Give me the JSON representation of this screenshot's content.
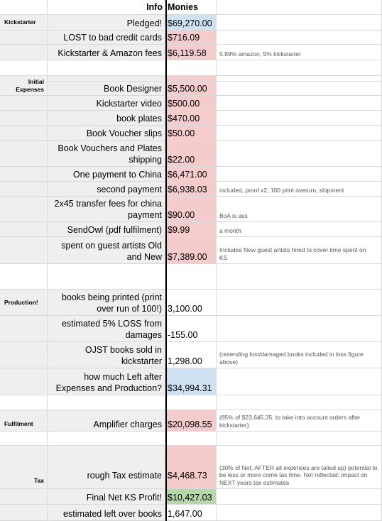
{
  "header": {
    "info": "Info",
    "monies": "Monies"
  },
  "sections": {
    "kickstarter": "Kickstarter",
    "initial_expenses": "Initial Expenses",
    "production": "Production!",
    "fulfilment": "Fulfilment",
    "tax": "Tax"
  },
  "rows": {
    "pledged": {
      "label": "Pledged!",
      "value": "$69,270.00"
    },
    "lost_cards": {
      "label": "LOST to bad credit cards",
      "value": "$716.09"
    },
    "fees": {
      "label": "Kickstarter & Amazon fees",
      "value": "$6,119.58",
      "note": "5.89% amazon, 5% kickstarter"
    },
    "book_designer": {
      "label": "Book Designer",
      "value": "$5,500.00"
    },
    "ks_video": {
      "label": "Kickstarter video",
      "value": "$500.00"
    },
    "book_plates": {
      "label": "book plates",
      "value": "$470.00"
    },
    "voucher_slips": {
      "label": "Book Voucher slips",
      "value": "$50.00"
    },
    "vouchers_ship": {
      "label": "Book Vouchers and Plates shipping",
      "value": "$22.00"
    },
    "china_one": {
      "label": "One payment to China",
      "value": "$6,471.00"
    },
    "china_two": {
      "label": "second payment",
      "value": "$6,938.03",
      "note": "included, proof x2, 100 print overurn, shipment"
    },
    "transfer_fees": {
      "label": "2x45 transfer fees for china payment",
      "value": "$90.00",
      "note": "BoA is ass"
    },
    "sendowl": {
      "label": "SendOwl (pdf fulfilment)",
      "value": "$9.99",
      "note": "a month"
    },
    "guest_artists": {
      "label": "spent on guest artists Old and New",
      "value": "$7,389.00",
      "note": "Includes New guest artists hired to cover time spent on KS"
    },
    "books_printed": {
      "label": "books being printed (print over run of 100!)",
      "value": "3,100.00"
    },
    "loss": {
      "label": "estimated 5% LOSS from damages",
      "value": "-155.00"
    },
    "ojst_sold": {
      "label": "OJST books sold in kickstarter",
      "value": "1,298.00",
      "note": "(resending lost/damaged books included in loss figure above)"
    },
    "left_after": {
      "label": "how much Left after Expenses and Production?",
      "value": "$34,994.31"
    },
    "amplifier": {
      "label": "Amplifier charges",
      "value": "$20,098.55",
      "note": "(85% of $23,645.35, to take into account orders after kickstarter)"
    },
    "tax_est": {
      "label": "rough Tax estimate",
      "value": "$4,468.73",
      "note": "(30% of Net: AFTER all expenses are talied up) potential to be less or more come tax time. Not reflected: impact on NEXT years tax estimates"
    },
    "net_profit": {
      "label": "Final Net KS Profit!",
      "value": "$10,427.03"
    },
    "left_books": {
      "label": "estimated left over books",
      "value": "1,647.00"
    }
  },
  "colors": {
    "gray": "#efefef",
    "pink": "#f4cccc",
    "blue": "#cfe2f3",
    "green": "#b6d7a8",
    "divider": "#000000"
  }
}
